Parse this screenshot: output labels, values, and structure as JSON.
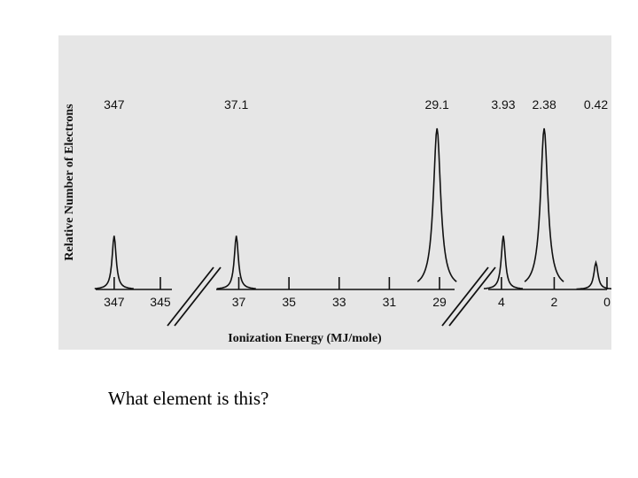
{
  "caption": "What element is this?",
  "chart_data": {
    "type": "line",
    "title": "",
    "xlabel": "Ionization Energy (MJ/mole)",
    "ylabel": "Relative Number of Electrons",
    "x_reversed": true,
    "axis_break": true,
    "segments": [
      {
        "tick_labels": [
          "347",
          "345"
        ],
        "ticks": [
          347,
          345
        ],
        "range": [
          347.8,
          344.5
        ]
      },
      {
        "tick_labels": [
          "37",
          "35",
          "33",
          "31",
          "29"
        ],
        "ticks": [
          37,
          35,
          33,
          31,
          29
        ],
        "range": [
          37.9,
          28.4
        ]
      },
      {
        "tick_labels": [
          "4",
          "2",
          "0"
        ],
        "ticks": [
          4,
          2,
          0
        ],
        "range": [
          4.5,
          0
        ]
      }
    ],
    "peaks": [
      {
        "segment": 0,
        "x": 347,
        "label": "347",
        "height": 2
      },
      {
        "segment": 1,
        "x": 37.1,
        "label": "37.1",
        "height": 2
      },
      {
        "segment": 1,
        "x": 29.1,
        "label": "29.1",
        "height": 6
      },
      {
        "segment": 2,
        "x": 3.93,
        "label": "3.93",
        "height": 2
      },
      {
        "segment": 2,
        "x": 2.38,
        "label": "2.38",
        "height": 6
      },
      {
        "segment": 2,
        "x": 0.42,
        "label": "0.42",
        "height": 1
      }
    ],
    "ylim": [
      0,
      6
    ]
  }
}
